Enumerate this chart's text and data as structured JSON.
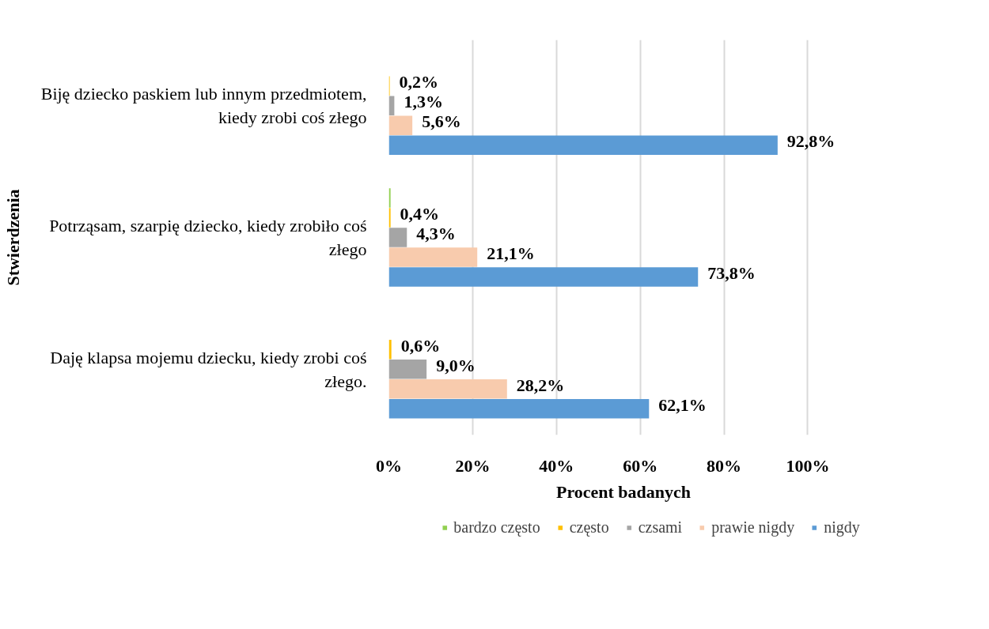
{
  "chart_data": {
    "type": "bar",
    "orientation": "horizontal",
    "xlabel": "Procent badanych",
    "ylabel": "Stwierdzenia",
    "categories": [
      "Biję dziecko paskiem lub innym przedmiotem, kiedy zrobi coś złego",
      "Potrząsam, szarpię dziecko, kiedy zrobiło coś złego",
      "Daję klapsa mojemu dziecku, kiedy zrobi coś złego."
    ],
    "series": [
      {
        "name": "bardzo często",
        "color": "#92d050",
        "values": [
          0,
          0.4,
          0
        ],
        "value_labels": [
          null,
          null,
          null
        ]
      },
      {
        "name": "często",
        "color": "#ffc000",
        "values": [
          0.2,
          0.4,
          0.6
        ],
        "value_labels": [
          "0,2%",
          "0,4%",
          "0,6%"
        ]
      },
      {
        "name": "czsami",
        "color": "#a5a5a5",
        "values": [
          1.3,
          4.3,
          9.0
        ],
        "value_labels": [
          "1,3%",
          "4,3%",
          "9,0%"
        ]
      },
      {
        "name": "prawie nigdy",
        "color": "#f8cbad",
        "values": [
          5.6,
          21.1,
          28.2
        ],
        "value_labels": [
          "5,6%",
          "21,1%",
          "28,2%"
        ]
      },
      {
        "name": "nigdy",
        "color": "#5b9bd5",
        "values": [
          92.8,
          73.8,
          62.1
        ],
        "value_labels": [
          "92,8%",
          "73,8%",
          "62,1%"
        ]
      }
    ],
    "xlim": [
      0,
      100
    ],
    "xticks": [
      {
        "value": 0,
        "label": "0%"
      },
      {
        "value": 20,
        "label": "20%"
      },
      {
        "value": 40,
        "label": "40%"
      },
      {
        "value": 60,
        "label": "60%"
      },
      {
        "value": 80,
        "label": "80%"
      },
      {
        "value": 100,
        "label": "100%"
      }
    ],
    "grid": "x",
    "legend": "bottom"
  }
}
